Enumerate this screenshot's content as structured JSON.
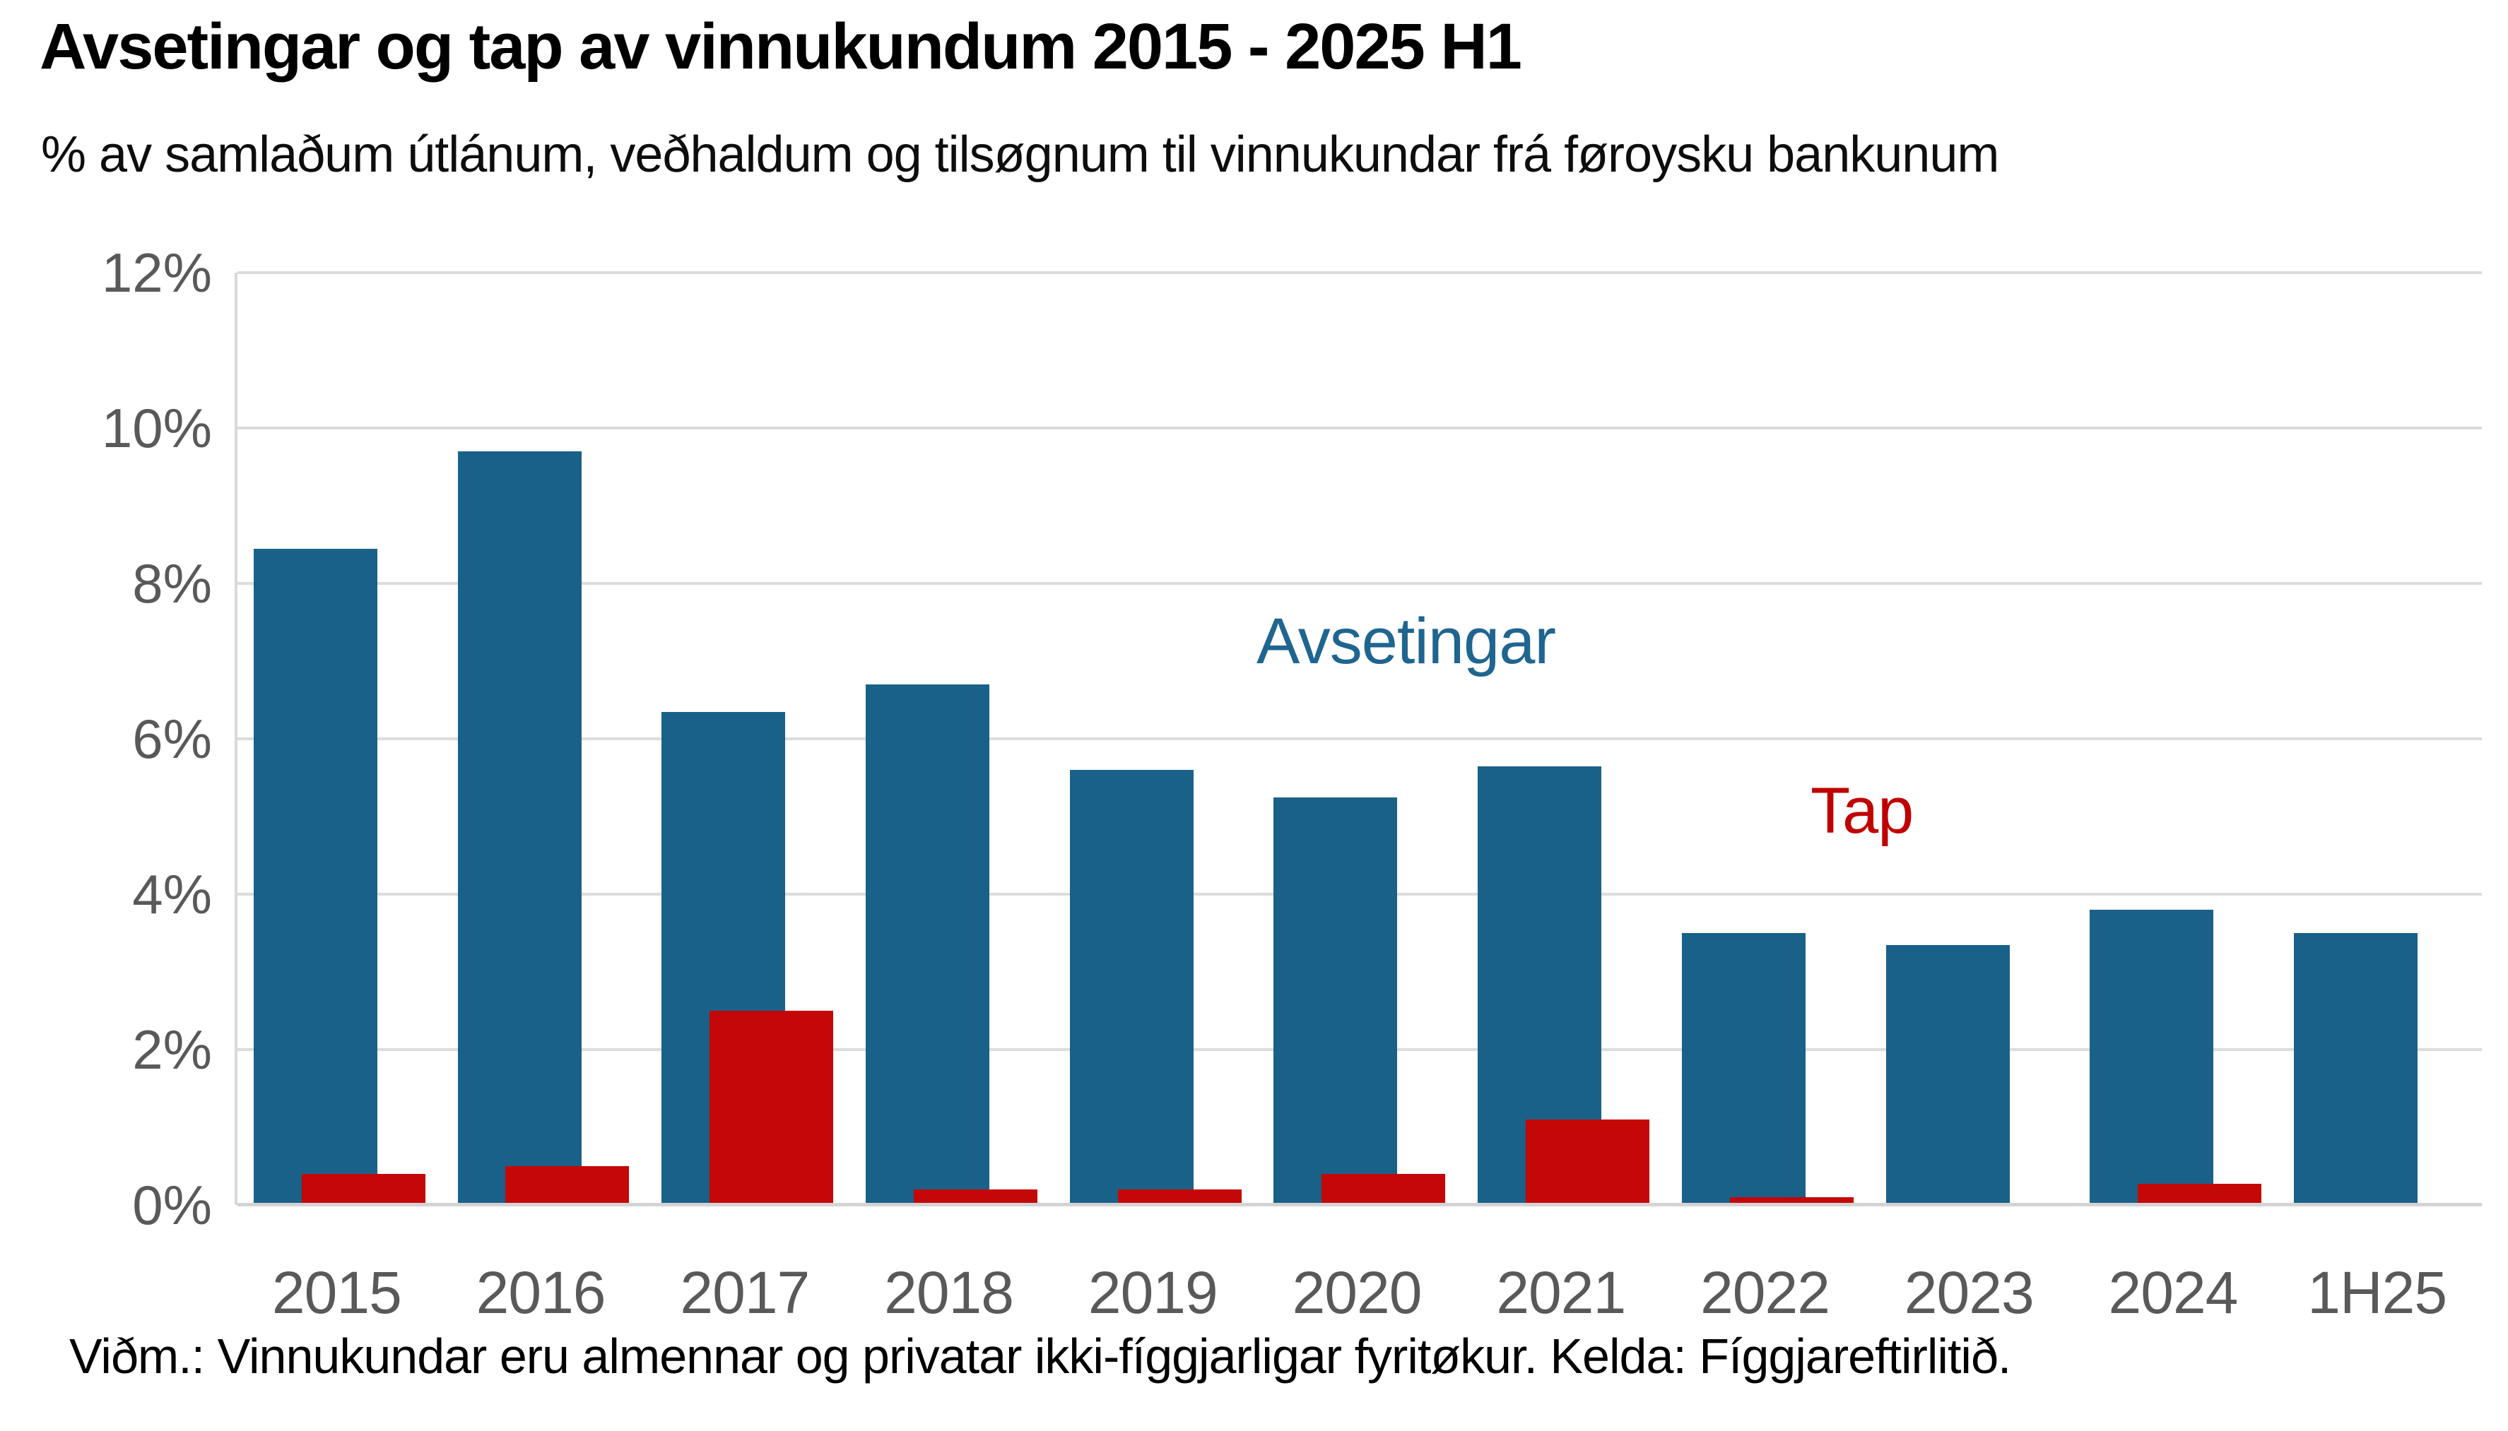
{
  "title": "Avsetingar og tap av vinnukundum 2015 - 2025 H1",
  "subtitle": "% av samlaðum útlánum, veðhaldum og tilsøgnum til vinnukundar frá føroysku bankunum",
  "footer": "Viðm.: Vinnukundar eru almennar og privatar ikki-fíggjarligar fyritøkur. Kelda: Fíggjareftirlitið.",
  "annotations": {
    "avsetingar_label": "Avsetingar",
    "tap_label": "Tap"
  },
  "colors": {
    "avsetingar_bar": "#1A6189",
    "tap_bar": "#C40808",
    "avsetingar_label_text": "#1F6590",
    "tap_label_text": "#C00000",
    "gridline": "#DCDCDC",
    "axis_line": "#D4D4D4",
    "tick_text": "#595959"
  },
  "chart_data": {
    "type": "bar",
    "title": "Avsetingar og tap av vinnukundum 2015 - 2025 H1",
    "subtitle": "% av samlaðum útlánum, veðhaldum og tilsøgnum til vinnukundar frá føroysku bankunum",
    "categories": [
      "2015",
      "2016",
      "2017",
      "2018",
      "2019",
      "2020",
      "2021",
      "2022",
      "2023",
      "2024",
      "1H25"
    ],
    "series": [
      {
        "name": "Avsetingar",
        "color": "#1A6189",
        "values": [
          8.45,
          9.7,
          6.35,
          6.7,
          5.6,
          5.25,
          5.65,
          3.5,
          3.35,
          3.8,
          3.5
        ]
      },
      {
        "name": "Tap",
        "color": "#C40808",
        "values": [
          0.4,
          0.5,
          2.5,
          0.2,
          0.2,
          0.4,
          1.1,
          0.1,
          0.03,
          0.27,
          0
        ]
      }
    ],
    "xlabel": "",
    "ylabel": "% av samlaðum útlánum, veðhaldum og tilsøgnum",
    "ylim": [
      0,
      12
    ],
    "ytick_interval": 2,
    "yticks": [
      "0%",
      "2%",
      "4%",
      "6%",
      "8%",
      "10%",
      "12%"
    ],
    "grid": true,
    "legend_position": "inline-annotations",
    "bar_style": "overlapped"
  }
}
